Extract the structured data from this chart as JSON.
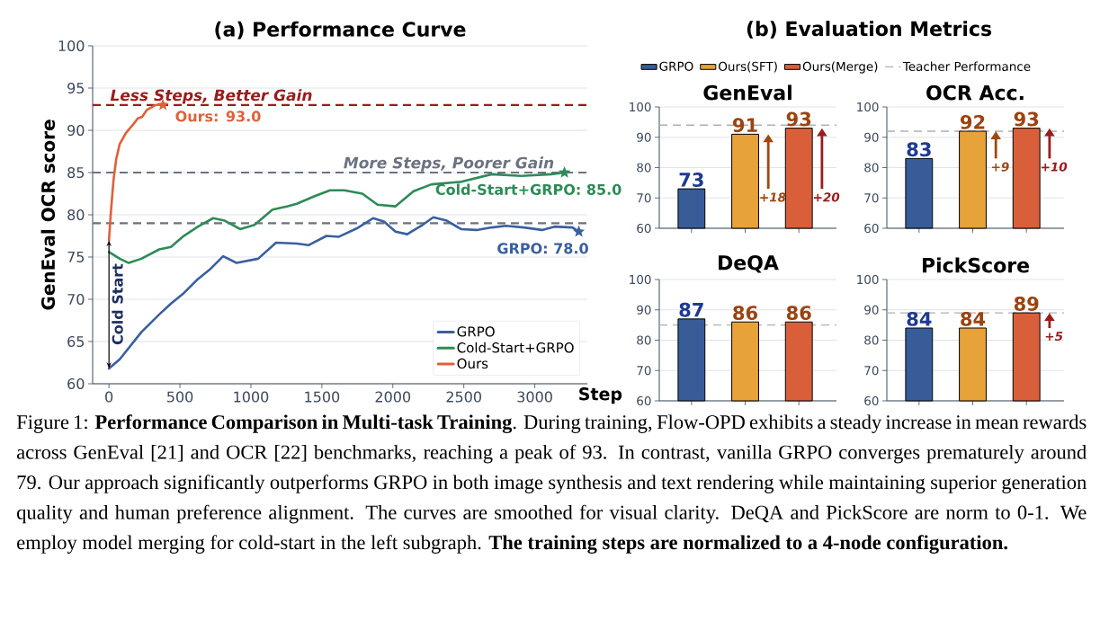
{
  "chart_data": [
    {
      "type": "line",
      "title": "(a) Performance Curve",
      "xlabel": "Step",
      "ylabel": "GenEval OCR score",
      "xlim": [
        -115,
        3370
      ],
      "ylim": [
        60,
        100
      ],
      "xticks": [
        0,
        500,
        1000,
        1500,
        2000,
        2500,
        3000
      ],
      "yticks": [
        60,
        65,
        70,
        75,
        80,
        85,
        90,
        95,
        100
      ],
      "grid": "y",
      "legend": "bottom right",
      "series": [
        {
          "name": "GRPO",
          "color": "#3a5f9f",
          "x": [
            0,
            76,
            228,
            354,
            437,
            519,
            627,
            709,
            804,
            899,
            1051,
            1177,
            1323,
            1405,
            1532,
            1620,
            1747,
            1861,
            1937,
            2019,
            2101,
            2209,
            2285,
            2380,
            2481,
            2589,
            2696,
            2797,
            2924,
            3051,
            3139,
            3266,
            3310
          ],
          "values": [
            61.8,
            62.9,
            66.1,
            68.2,
            69.5,
            70.6,
            72.4,
            73.5,
            75.1,
            74.3,
            74.8,
            76.7,
            76.6,
            76.4,
            77.5,
            77.4,
            78.4,
            79.6,
            79.2,
            78.0,
            77.7,
            78.8,
            79.7,
            79.3,
            78.3,
            78.2,
            78.5,
            78.7,
            78.5,
            78.2,
            78.6,
            78.5,
            78.0
          ]
        },
        {
          "name": "Cold-Start+GRPO",
          "color": "#2e8b57",
          "x": [
            0,
            76,
            139,
            228,
            354,
            437,
            519,
            627,
            734,
            816,
            924,
            1025,
            1152,
            1259,
            1323,
            1449,
            1557,
            1658,
            1785,
            1892,
            2019,
            2146,
            2272,
            2481,
            2696,
            2905,
            3114,
            3209
          ],
          "values": [
            75.6,
            74.8,
            74.3,
            74.8,
            75.9,
            76.2,
            77.4,
            78.6,
            79.6,
            79.3,
            78.3,
            78.8,
            80.6,
            81.0,
            81.3,
            82.2,
            82.9,
            82.9,
            82.5,
            81.2,
            81.0,
            82.8,
            83.6,
            83.9,
            84.8,
            84.6,
            84.8,
            85.0
          ]
        },
        {
          "name": "Ours",
          "color": "#e0603a",
          "x": [
            0,
            13,
            32,
            51,
            76,
            120,
            171,
            203,
            234,
            266,
            329,
            380
          ],
          "values": [
            77.0,
            80.2,
            84.1,
            86.6,
            88.4,
            89.7,
            90.7,
            91.4,
            91.6,
            92.4,
            93.0,
            93.0
          ]
        }
      ],
      "ref_lines": [
        {
          "axis": "y",
          "value": 93,
          "label": "Less Steps, Better Gain",
          "color": "#9b1c1c",
          "line_style": "dashed"
        },
        {
          "axis": "y",
          "value": 85,
          "label": "More Steps, Poorer Gain",
          "color": "#6b7280",
          "line_style": "dashed"
        },
        {
          "axis": "y",
          "value": 79,
          "color": "#6b7280",
          "line_style": "dashed"
        }
      ],
      "annotations": [
        {
          "text": "Ours: 93.0",
          "x": 380,
          "y": 93.0
        },
        {
          "text": "Cold-Start+GRPO: 85.0",
          "x": 3209,
          "y": 85.0
        },
        {
          "text": "GRPO: 78.0",
          "x": 3310,
          "y": 78.0
        },
        "Cold Start",
        "Figure 1: **Performance Comparison in Multi-task Training**. During training, Flow-OPD exhibits a steady increase in mean rewards across GenEval [21] and OCR [22] benchmarks, reaching a peak of 93. In contrast, vanilla GRPO converges prematurely around 79. Our approach significantly outperforms GRPO in both image synthesis and text rendering while maintaining superior generation quality and human preference alignment. The curves are smoothed for visual clarity. DeQA and PickScore are norm to 0-1. We employ model merging for cold-start in the left subgraph. **The training steps are normalized to a 4-node configuration.**"
      ]
    },
    {
      "type": "bar",
      "title": "GenEval",
      "categories": [
        null,
        null,
        null
      ],
      "ylim": [
        60,
        100
      ],
      "yticks": [
        60,
        70,
        80,
        90,
        100
      ],
      "grid": "y",
      "tick_labels": "y",
      "data_labels": true,
      "legend": "top",
      "series": [
        {
          "name": "GRPO",
          "color": "#375c97",
          "values": [
            73,
            null,
            null
          ]
        },
        {
          "name": "Ours(SFT)",
          "color": "#e8a23a",
          "values": [
            null,
            91,
            null
          ]
        },
        {
          "name": "Ours(Merge)",
          "color": "#d95f3b",
          "values": [
            null,
            null,
            93
          ]
        }
      ],
      "ref_lines": [
        {
          "axis": "y",
          "value": 94,
          "label": "Teacher Performance",
          "color": "#b0b0b0",
          "line_style": "dashed"
        }
      ],
      "subtitle": "(b) Evaluation Metrics",
      "annotations": [
        "+18",
        "+20"
      ]
    },
    {
      "type": "bar",
      "title": "OCR Acc.",
      "categories": [
        null,
        null,
        null
      ],
      "ylim": [
        60,
        100
      ],
      "yticks": [
        60,
        70,
        80,
        90,
        100
      ],
      "grid": "y",
      "tick_labels": "y",
      "data_labels": true,
      "series": [
        {
          "color": "#375c97",
          "values": [
            83,
            null,
            null
          ]
        },
        {
          "color": "#e8a23a",
          "values": [
            null,
            92,
            null
          ]
        },
        {
          "color": "#d95f3b",
          "values": [
            null,
            null,
            93
          ]
        }
      ],
      "ref_lines": [
        {
          "axis": "y",
          "value": 92,
          "color": "#b0b0b0",
          "line_style": "dashed"
        }
      ],
      "annotations": [
        "+9",
        "+10"
      ]
    },
    {
      "type": "bar",
      "title": "DeQA",
      "categories": [
        null,
        null,
        null
      ],
      "ylim": [
        60,
        100
      ],
      "yticks": [
        60,
        70,
        80,
        90,
        100
      ],
      "grid": "y",
      "tick_labels": "y",
      "data_labels": true,
      "series": [
        {
          "color": "#375c97",
          "values": [
            87,
            null,
            null
          ]
        },
        {
          "color": "#e8a23a",
          "values": [
            null,
            86,
            null
          ]
        },
        {
          "color": "#d95f3b",
          "values": [
            null,
            null,
            86
          ]
        }
      ],
      "ref_lines": [
        {
          "axis": "y",
          "value": 85,
          "color": "#b0b0b0",
          "line_style": "dashed"
        }
      ]
    },
    {
      "type": "bar",
      "title": "PickScore",
      "categories": [
        null,
        null,
        null
      ],
      "ylim": [
        60,
        100
      ],
      "yticks": [
        60,
        70,
        80,
        90,
        100
      ],
      "grid": "y",
      "tick_labels": "y",
      "data_labels": true,
      "series": [
        {
          "color": "#375c97",
          "values": [
            84,
            null,
            null
          ]
        },
        {
          "color": "#e8a23a",
          "values": [
            null,
            84,
            null
          ]
        },
        {
          "color": "#d95f3b",
          "values": [
            null,
            null,
            89
          ]
        }
      ],
      "ref_lines": [
        {
          "axis": "y",
          "value": 89,
          "color": "#b0b0b0",
          "line_style": "dashed"
        }
      ],
      "annotations": [
        "+5"
      ]
    }
  ]
}
